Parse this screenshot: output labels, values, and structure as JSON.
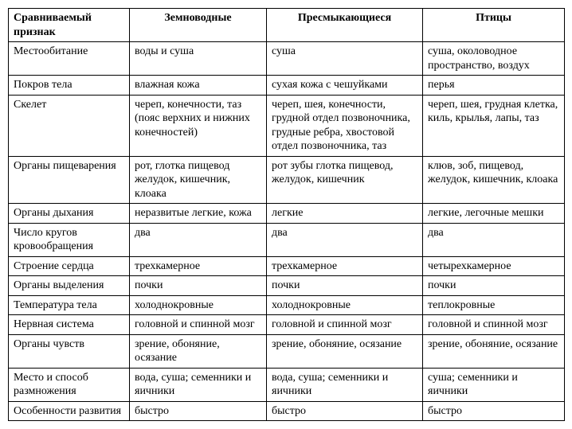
{
  "table": {
    "header": {
      "feature": "Сравниваемый признак",
      "col1": "Земноводные",
      "col2": "Пресмыкающиеся",
      "col3": "Птицы"
    },
    "rows": [
      {
        "feature": "Местообитание",
        "c1": "воды и суша",
        "c2": "суша",
        "c3": "суша, околоводное пространство, воздух"
      },
      {
        "feature": "Покров тела",
        "c1": "влажная кожа",
        "c2": "сухая кожа с чешуйками",
        "c3": "перья"
      },
      {
        "feature": "Скелет",
        "c1": "череп, конечности, таз (пояс верхних и нижних конечностей)",
        "c2": "череп, шея, конечности, грудной отдел позвоночника, грудные ребра, хвостовой отдел позвоночника, таз",
        "c3": "череп, шея, грудная клетка, киль, крылья, лапы, таз"
      },
      {
        "feature": "Органы пищеварения",
        "c1": "рот, глотка пищевод желудок, кишечник, клоака",
        "c2": "рот зубы глотка пищевод, желудок, кишечник",
        "c3": "клюв, зоб, пищевод, желудок, кишечник, клоака"
      },
      {
        "feature": "Органы дыхания",
        "c1": "неразвитые легкие, кожа",
        "c2": "легкие",
        "c3": "легкие, легочные мешки"
      },
      {
        "feature": "Число кругов кровообращения",
        "c1": "два",
        "c2": "два",
        "c3": "два"
      },
      {
        "feature": "Строение сердца",
        "c1": "трехкамерное",
        "c2": "трехкамерное",
        "c3": "четырехкамерное"
      },
      {
        "feature": "Органы выделения",
        "c1": "почки",
        "c2": "почки",
        "c3": "почки"
      },
      {
        "feature": "Температура тела",
        "c1": "холоднокровные",
        "c2": "холоднокровные",
        "c3": "теплокровные"
      },
      {
        "feature": "Нервная система",
        "c1": "головной и спинной мозг",
        "c2": "головной и спинной мозг",
        "c3": "головной и спинной мозг"
      },
      {
        "feature": "Органы чувств",
        "c1": "зрение, обоняние, осязание",
        "c2": "зрение, обоняние, осязание",
        "c3": "зрение, обоняние, осязание"
      },
      {
        "feature": "Место и способ размножения",
        "c1": "вода, суша; семенники и яичники",
        "c2": "вода, суша; семенники и яичники",
        "c3": "суша; семенники и яичники"
      },
      {
        "feature": "Особенности развития",
        "c1": "быстро",
        "c2": "быстро",
        "c3": "быстро"
      }
    ]
  }
}
